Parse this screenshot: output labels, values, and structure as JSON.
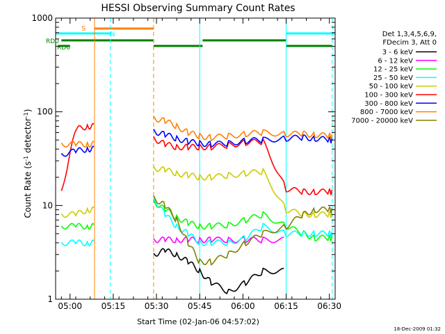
{
  "chart_data": {
    "type": "line",
    "title": "HESSI Observing Summary Count Rates",
    "xlabel": "Start Time (02-Jan-06 04:57:02)",
    "ylabel_main": "Count Rate (s",
    "ylabel_sup1": "-1",
    "ylabel_mid": " detector",
    "ylabel_sup2": "-1",
    "ylabel_end": ")",
    "y_scale": "log",
    "ylim": [
      1,
      1000
    ],
    "xlim_min": [
      -2,
      95
    ],
    "x_ticks": [
      {
        "m": 3,
        "label": "05:00"
      },
      {
        "m": 18,
        "label": "05:15"
      },
      {
        "m": 33,
        "label": "05:30"
      },
      {
        "m": 48,
        "label": "05:45"
      },
      {
        "m": 63,
        "label": "06:00"
      },
      {
        "m": 78,
        "label": "06:15"
      },
      {
        "m": 93,
        "label": "06:30"
      }
    ],
    "y_ticks": [
      {
        "v": 1,
        "label": "1"
      },
      {
        "v": 10,
        "label": "10"
      },
      {
        "v": 100,
        "label": "100"
      },
      {
        "v": 1000,
        "label": "1000"
      }
    ],
    "legend": {
      "position": "right",
      "header": [
        "Det 1,3,4,5,6,9,",
        "FDecim 3, Att 0"
      ],
      "entries": [
        "3 - 6 keV",
        "6 - 12 keV",
        "12 - 25 keV",
        "25 - 50 keV",
        "50 - 100 keV",
        "100 - 300 keV",
        "300 - 800 keV",
        "800 - 7000 keV",
        "7000 - 20000 keV"
      ]
    },
    "timestamp": "18-Dec-2009 01:32",
    "bar_labels": {
      "saa": "S",
      "night": "N",
      "rd0": "RD0",
      "rd6": "RD6"
    },
    "gap_lines_min": [
      11.5,
      17,
      32,
      48,
      78,
      94
    ],
    "series": [
      {
        "color": "#000000",
        "values": [
          0,
          0,
          0,
          0,
          3,
          3.3,
          3,
          2.5,
          2,
          1.5,
          1.2,
          1.5,
          2,
          0,
          0,
          0,
          0
        ]
      },
      {
        "color": "#ff00ff",
        "values": [
          0,
          0,
          0,
          0,
          4.3,
          4.3,
          4.3,
          4.3,
          4.3,
          4.3,
          4.3,
          4.3,
          4.3,
          0,
          0,
          0,
          0
        ]
      },
      {
        "color": "#00ff00",
        "values": [
          6,
          6,
          6,
          0,
          11,
          9,
          7.5,
          6.5,
          6,
          6,
          6.2,
          7,
          8,
          6,
          5,
          4.5,
          4.5
        ]
      },
      {
        "color": "#00ffff",
        "values": [
          4,
          4,
          4,
          0,
          12,
          8,
          6,
          5,
          4,
          4,
          4,
          4.5,
          6,
          5,
          5,
          5,
          5
        ]
      },
      {
        "color": "#cccc00",
        "values": [
          8,
          8,
          9,
          0,
          25,
          24,
          22,
          21,
          20,
          20,
          21,
          22,
          23,
          9,
          8,
          8,
          8
        ]
      },
      {
        "color": "#ff0000",
        "values": [
          14,
          65,
          70,
          0,
          52,
          45,
          42,
          42,
          42,
          42,
          44,
          47,
          48,
          15,
          14,
          14,
          14
        ]
      },
      {
        "color": "#0000ff",
        "values": [
          35,
          38,
          40,
          0,
          62,
          57,
          52,
          48,
          46,
          45,
          46,
          49,
          50,
          52,
          53,
          52,
          50
        ]
      },
      {
        "color": "#ff8000",
        "values": [
          45,
          45,
          45,
          0,
          85,
          80,
          70,
          60,
          55,
          53,
          55,
          58,
          60,
          58,
          58,
          57,
          55
        ]
      },
      {
        "color": "#808000",
        "values": [
          0,
          0,
          0,
          0,
          12,
          10,
          7,
          4,
          2.5,
          2.5,
          3,
          4,
          5,
          6,
          8,
          9,
          9
        ]
      }
    ]
  }
}
